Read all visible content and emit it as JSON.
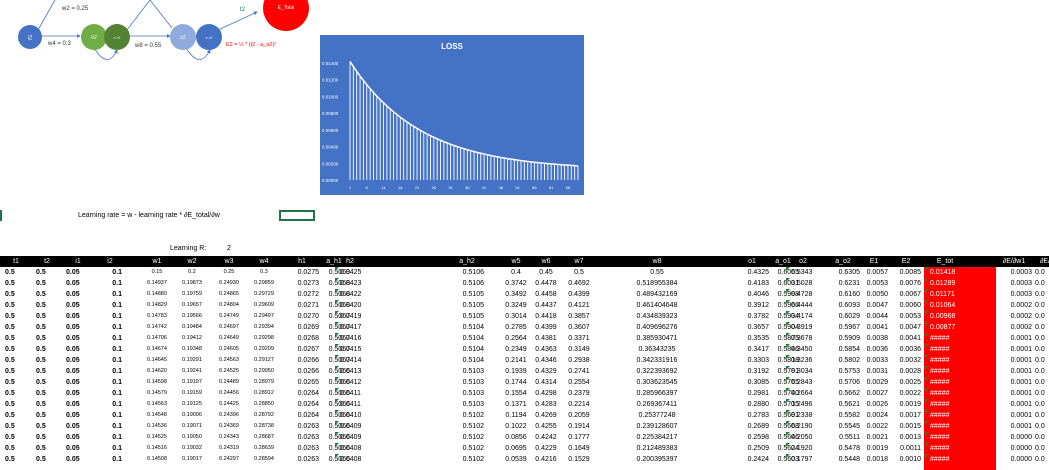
{
  "diagram": {
    "w2_label": "w2 = 0.25",
    "w4_label": "w4 = 0.3",
    "w8_label": "w8 = 0.55",
    "t2_label": "t2",
    "loss_formula": "E2 = ½ * (t2 - a_o2)²",
    "nodes": {
      "i2": "i2",
      "h2": "h2",
      "a_h2": "a_h2",
      "o2": "o2",
      "a_o2": "a_o2",
      "e_total": "E_Total"
    },
    "colors": {
      "input": "#4472C4",
      "hidden": "#70AD47",
      "hidden_act": "#548235",
      "output": "#8FAADC",
      "loss": "#FF0000"
    }
  },
  "chart_data": {
    "type": "area",
    "title": "LOSS",
    "ylim": [
      0,
      0.014
    ],
    "yticks": [
      "0.01400",
      "0.01200",
      "0.01000",
      "0.00800",
      "0.00600",
      "0.00400",
      "0.00200",
      "0.00000"
    ],
    "xticks": [
      "1",
      "6",
      "11",
      "16",
      "21",
      "26",
      "31",
      "36",
      "41",
      "46",
      "51",
      "56",
      "61",
      "66"
    ],
    "x_range": [
      1,
      69
    ],
    "y_start": 0.01418,
    "y_end": 0.0012,
    "decay_rate": 0.048,
    "grid": false
  },
  "notes": {
    "learning_formula": "Learning rate = w - learning rate * ∂E_total/∂w",
    "learning_rate_label": "Learning R:",
    "learning_rate_value": "2"
  },
  "table": {
    "columns": [
      {
        "h": "t1",
        "x": 5,
        "w": 22,
        "a": "l"
      },
      {
        "h": "t2",
        "x": 36,
        "w": 22,
        "a": "l"
      },
      {
        "h": "i1",
        "x": 66,
        "w": 24,
        "a": "l"
      },
      {
        "h": "i2",
        "x": 98,
        "w": 24,
        "a": "r"
      },
      {
        "h": "w1",
        "x": 140,
        "w": 34,
        "a": "c",
        "s": 1
      },
      {
        "h": "w2",
        "x": 175,
        "w": 34,
        "a": "c",
        "s": 1
      },
      {
        "h": "w3",
        "x": 212,
        "w": 34,
        "a": "c",
        "s": 1
      },
      {
        "h": "w4",
        "x": 247,
        "w": 34,
        "a": "c",
        "s": 1
      },
      {
        "h": "h1",
        "x": 285,
        "w": 34,
        "a": "r"
      },
      {
        "h": "a_h1",
        "x": 318,
        "w": 32,
        "a": "r"
      },
      {
        "h": "h2",
        "x": 335,
        "w": 30,
        "a": "l",
        "t": 1
      },
      {
        "h": "a_h2",
        "x": 450,
        "w": 34,
        "a": "r"
      },
      {
        "h": "w5",
        "x": 498,
        "w": 36,
        "a": "c"
      },
      {
        "h": "w6",
        "x": 528,
        "w": 36,
        "a": "c"
      },
      {
        "h": "w7",
        "x": 561,
        "w": 36,
        "a": "c"
      },
      {
        "h": "w8",
        "x": 612,
        "w": 90,
        "a": "c"
      },
      {
        "h": "o1",
        "x": 735,
        "w": 34,
        "a": "r"
      },
      {
        "h": "a_o1",
        "x": 767,
        "w": 32,
        "a": "r"
      },
      {
        "h": "o2",
        "x": 786,
        "w": 34,
        "a": "l",
        "t": 1
      },
      {
        "h": "a_o2",
        "x": 826,
        "w": 34,
        "a": "r"
      },
      {
        "h": "E1",
        "x": 860,
        "w": 28,
        "a": "r"
      },
      {
        "h": "E2",
        "x": 891,
        "w": 30,
        "a": "r"
      },
      {
        "h": "E_tot",
        "x": 925,
        "w": 40,
        "a": "l",
        "t": 1
      },
      {
        "h": "∂E/∂w1",
        "x": 996,
        "w": 36,
        "a": "r"
      },
      {
        "h": "∂E/",
        "x": 1035,
        "w": 20,
        "a": "l"
      }
    ],
    "rows": [
      [
        "0.5",
        "0.5",
        "0.05",
        "0.1",
        "0.15",
        "0.2",
        "0.25",
        "0.3",
        "0.0275",
        "0.5069",
        "0.0425",
        "0.5106",
        "0.4",
        "0.45",
        "0.5",
        "0.55",
        "0.4325",
        "0.6065",
        "0.5343",
        "0.6305",
        "0.0057",
        "0.0085",
        "0.01418",
        "0.0003",
        "0.0"
      ],
      [
        "0.5",
        "0.5",
        "0.05",
        "0.1",
        "0.14937",
        "0.19873",
        "0.24930",
        "0.29859",
        "0.0273",
        "0.5068",
        "0.0423",
        "0.5106",
        "0.3742",
        "0.4478",
        "0.4692",
        "0.518955384",
        "0.4183",
        "0.6031",
        "0.5028",
        "0.6231",
        "0.0053",
        "0.0076",
        "0.01289",
        "0.0003",
        "0.0"
      ],
      [
        "0.5",
        "0.5",
        "0.05",
        "0.1",
        "0.14880",
        "0.19759",
        "0.24865",
        "0.29729",
        "0.0272",
        "0.5068",
        "0.0422",
        "0.5105",
        "0.3492",
        "0.4458",
        "0.4399",
        "0.489432169",
        "0.4046",
        "0.5998",
        "0.4728",
        "0.6160",
        "0.0050",
        "0.0067",
        "0.01171",
        "0.0003",
        "0.0"
      ],
      [
        "0.5",
        "0.5",
        "0.05",
        "0.1",
        "0.14829",
        "0.19657",
        "0.24804",
        "0.29609",
        "0.0271",
        "0.5068",
        "0.0420",
        "0.5105",
        "0.3249",
        "0.4437",
        "0.4121",
        "0.461404648",
        "0.3912",
        "0.5966",
        "0.4444",
        "0.6093",
        "0.0047",
        "0.0060",
        "0.01064",
        "0.0002",
        "0.0"
      ],
      [
        "0.5",
        "0.5",
        "0.05",
        "0.1",
        "0.14783",
        "0.19566",
        "0.24749",
        "0.29497",
        "0.0270",
        "0.5067",
        "0.0419",
        "0.5105",
        "0.3014",
        "0.4418",
        "0.3857",
        "0.434839323",
        "0.3782",
        "0.5934",
        "0.4174",
        "0.6029",
        "0.0044",
        "0.0053",
        "0.00968",
        "0.0002",
        "0.0"
      ],
      [
        "0.5",
        "0.5",
        "0.05",
        "0.1",
        "0.14742",
        "0.19484",
        "0.24697",
        "0.29394",
        "0.0269",
        "0.5067",
        "0.0417",
        "0.5104",
        "0.2785",
        "0.4399",
        "0.3607",
        "0.409696276",
        "0.3657",
        "0.5904",
        "0.3919",
        "0.5967",
        "0.0041",
        "0.0047",
        "0.00877",
        "0.0002",
        "0.0"
      ],
      [
        "0.5",
        "0.5",
        "0.05",
        "0.1",
        "0.14706",
        "0.19412",
        "0.24649",
        "0.29298",
        "0.0268",
        "0.5067",
        "0.0416",
        "0.5104",
        "0.2564",
        "0.4381",
        "0.3371",
        "0.385930471",
        "0.3535",
        "0.5875",
        "0.3678",
        "0.5909",
        "0.0038",
        "0.0041",
        "#####",
        "0.0001",
        "0.0"
      ],
      [
        "0.5",
        "0.5",
        "0.05",
        "0.1",
        "0.14674",
        "0.19348",
        "0.24605",
        "0.29209",
        "0.0267",
        "0.5067",
        "0.0415",
        "0.5104",
        "0.2349",
        "0.4363",
        "0.3149",
        "0.36343235",
        "0.3417",
        "0.5846",
        "0.3450",
        "0.5854",
        "0.0036",
        "0.0036",
        "#####",
        "0.0001",
        "0.0"
      ],
      [
        "0.5",
        "0.5",
        "0.05",
        "0.1",
        "0.14645",
        "0.19291",
        "0.24563",
        "0.29127",
        "0.0266",
        "0.5067",
        "0.0414",
        "0.5104",
        "0.2141",
        "0.4346",
        "0.2938",
        "0.342331916",
        "0.3303",
        "0.5818",
        "0.3236",
        "0.5802",
        "0.0033",
        "0.0032",
        "#####",
        "0.0001",
        "0.0"
      ],
      [
        "0.5",
        "0.5",
        "0.05",
        "0.1",
        "0.14620",
        "0.19241",
        "0.24525",
        "0.29050",
        "0.0266",
        "0.5066",
        "0.0413",
        "0.5103",
        "0.1939",
        "0.4329",
        "0.2741",
        "0.322393692",
        "0.3192",
        "0.5791",
        "0.3034",
        "0.5753",
        "0.0031",
        "0.0028",
        "#####",
        "0.0001",
        "0.0"
      ],
      [
        "0.5",
        "0.5",
        "0.05",
        "0.1",
        "0.14598",
        "0.19197",
        "0.24489",
        "0.28979",
        "0.0265",
        "0.5066",
        "0.0412",
        "0.5103",
        "0.1744",
        "0.4314",
        "0.2554",
        "0.303623545",
        "0.3085",
        "0.5765",
        "0.2843",
        "0.5706",
        "0.0029",
        "0.0025",
        "#####",
        "0.0001",
        "0.0"
      ],
      [
        "0.5",
        "0.5",
        "0.05",
        "0.1",
        "0.14579",
        "0.19159",
        "0.24456",
        "0.28912",
        "0.0264",
        "0.5066",
        "0.0411",
        "0.5103",
        "0.1554",
        "0.4298",
        "0.2379",
        "0.285966397",
        "0.2981",
        "0.5740",
        "0.2664",
        "0.5662",
        "0.0027",
        "0.0022",
        "#####",
        "0.0001",
        "0.0"
      ],
      [
        "0.5",
        "0.5",
        "0.05",
        "0.1",
        "0.14563",
        "0.19125",
        "0.24425",
        "0.28850",
        "0.0264",
        "0.5066",
        "0.0411",
        "0.5103",
        "0.1371",
        "0.4283",
        "0.2214",
        "0.269367411",
        "0.2880",
        "0.5715",
        "0.2496",
        "0.5621",
        "0.0026",
        "0.0019",
        "#####",
        "0.0001",
        "0.0"
      ],
      [
        "0.5",
        "0.5",
        "0.05",
        "0.1",
        "0.14548",
        "0.19096",
        "0.24396",
        "0.28792",
        "0.0264",
        "0.5066",
        "0.0410",
        "0.5102",
        "0.1194",
        "0.4269",
        "0.2059",
        "0.25377248",
        "0.2783",
        "0.5691",
        "0.2338",
        "0.5582",
        "0.0024",
        "0.0017",
        "#####",
        "0.0001",
        "0.0"
      ],
      [
        "0.5",
        "0.5",
        "0.05",
        "0.1",
        "0.14536",
        "0.19071",
        "0.24369",
        "0.28738",
        "0.0263",
        "0.5066",
        "0.0409",
        "0.5102",
        "0.1022",
        "0.4255",
        "0.1914",
        "0.239128607",
        "0.2689",
        "0.5668",
        "0.2190",
        "0.5545",
        "0.0022",
        "0.0015",
        "#####",
        "0.0001",
        "0.0"
      ],
      [
        "0.5",
        "0.5",
        "0.05",
        "0.1",
        "0.14525",
        "0.19050",
        "0.24343",
        "0.28687",
        "0.0263",
        "0.5066",
        "0.0409",
        "0.5102",
        "0.0856",
        "0.4242",
        "0.1777",
        "0.225384217",
        "0.2598",
        "0.5646",
        "0.2050",
        "0.5511",
        "0.0021",
        "0.0013",
        "#####",
        "0.0000",
        "0.0"
      ],
      [
        "0.5",
        "0.5",
        "0.05",
        "0.1",
        "0.14516",
        "0.19032",
        "0.24319",
        "0.28639",
        "0.0263",
        "0.5066",
        "0.0408",
        "0.5102",
        "0.0695",
        "0.4229",
        "0.1649",
        "0.212489383",
        "0.2509",
        "0.5624",
        "0.1920",
        "0.5478",
        "0.0019",
        "0.0011",
        "#####",
        "0.0000",
        "0.0"
      ],
      [
        "0.5",
        "0.5",
        "0.05",
        "0.1",
        "0.14508",
        "0.19017",
        "0.24297",
        "0.28594",
        "0.0263",
        "0.5066",
        "0.0408",
        "0.5102",
        "0.0539",
        "0.4216",
        "0.1529",
        "0.200395397",
        "0.2424",
        "0.5603",
        "0.1797",
        "0.5448",
        "0.0018",
        "0.0010",
        "#####",
        "0.0000",
        "0.0"
      ]
    ]
  }
}
